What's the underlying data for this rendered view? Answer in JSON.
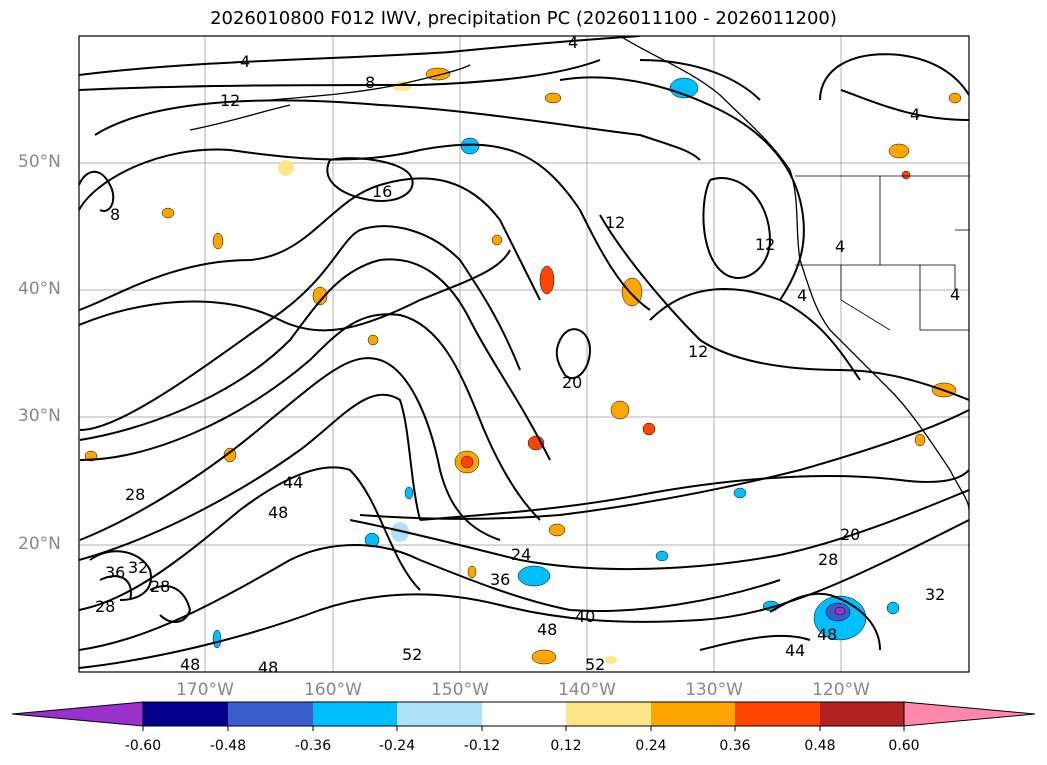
{
  "title": "2026010800 F012 IWV, precipitation PC (2026011100 - 2026011200)",
  "lat_labels": [
    "50°N",
    "40°N",
    "30°N",
    "20°N"
  ],
  "lon_labels": [
    "170°W",
    "160°W",
    "150°W",
    "140°W",
    "130°W",
    "120°W"
  ],
  "colorbar": {
    "ticks": [
      "-0.60",
      "-0.48",
      "-0.36",
      "-0.24",
      "-0.12",
      "0.12",
      "0.24",
      "0.36",
      "0.48",
      "0.60"
    ],
    "colors": [
      "#9932cc",
      "#00008b",
      "#3a5fcd",
      "#00bfff",
      "#aee2f8",
      "#ffffff",
      "#fde68a",
      "#ffa500",
      "#ff4500",
      "#b22222",
      "#ff88aa"
    ]
  },
  "contour_labels": [
    "4",
    "8",
    "12",
    "16",
    "20",
    "24",
    "28",
    "32",
    "36",
    "40",
    "44",
    "48",
    "52"
  ],
  "colors": {
    "contour": "#000000",
    "grid": "#b0b0b0",
    "axis_label": "#888888"
  }
}
